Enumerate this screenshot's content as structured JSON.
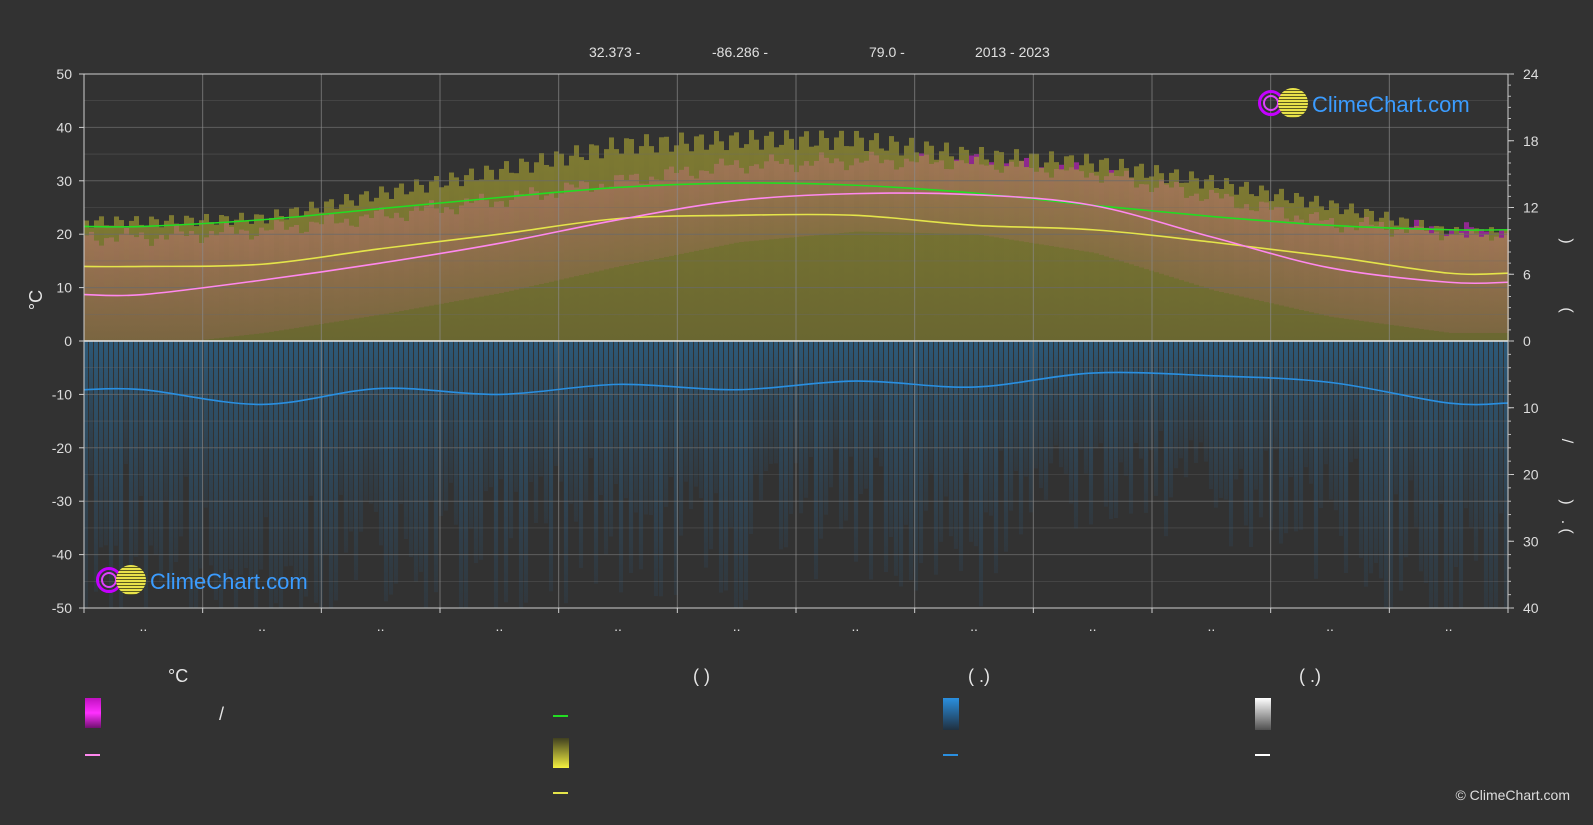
{
  "header": {
    "lat": "32.373 -",
    "lon": "-86.286 -",
    "elev": "79.0 -",
    "years": "2013 - 2023"
  },
  "logo": {
    "text": "ClimeChart.com"
  },
  "copyright": "© ClimeChart.com",
  "legend": {
    "col1_head": "°C",
    "col1_row1": "/",
    "col2_head": "(          )",
    "col3_head": "(    .)",
    "col4_head": "(    .)"
  },
  "colors": {
    "background": "#323232",
    "daylight": "#22dd22",
    "sunshine": "#e4e44a",
    "temp_mean": "#ff88ee",
    "temp_band": "#e020e0",
    "precip": "#2a8fe0",
    "precip_band": "#1e5a85",
    "grid": "#6a6a6a"
  },
  "chart_data": {
    "type": "area",
    "months": [
      "..",
      "..",
      "..",
      "..",
      "..",
      "..",
      "..",
      "..",
      "..",
      "..",
      "..",
      ".."
    ],
    "y_left": {
      "label": "°C",
      "ylim": [
        -50,
        50
      ],
      "ticks": [
        "50",
        "40",
        "30",
        "20",
        "10",
        "0",
        "-10",
        "-20",
        "-30",
        "-40",
        "-50"
      ]
    },
    "y_right_top": {
      "ylim": [
        0,
        24
      ],
      "ticks": [
        "24",
        "18",
        "12",
        "6",
        "0"
      ],
      "label_glyphs": [
        ")",
        "(",
        "/",
        ")",
        ".",
        "("
      ]
    },
    "y_right_bottom": {
      "ylim": [
        0,
        40
      ],
      "ticks": [
        "10",
        "20",
        "30",
        "40"
      ]
    },
    "series": [
      {
        "key": "daylight",
        "axis": "hours",
        "values": [
          10.3,
          10.9,
          11.9,
          12.9,
          13.8,
          14.2,
          14.0,
          13.3,
          12.2,
          11.2,
          10.4,
          10.0
        ]
      },
      {
        "key": "sunshine",
        "axis": "hours",
        "values": [
          6.7,
          6.9,
          8.3,
          9.6,
          11.0,
          11.3,
          11.3,
          10.4,
          10.0,
          8.9,
          7.6,
          6.1
        ]
      },
      {
        "key": "temp_mean",
        "axis": "celsius",
        "values": [
          8.7,
          11.4,
          14.6,
          18.3,
          22.7,
          26.3,
          27.6,
          27.4,
          25.4,
          19.5,
          13.7,
          11.0
        ]
      },
      {
        "key": "temp_max",
        "axis": "celsius",
        "values": [
          19.5,
          20.8,
          23.5,
          26.5,
          30.0,
          33.0,
          33.8,
          33.5,
          31.5,
          27.0,
          22.0,
          20.5
        ]
      },
      {
        "key": "temp_min",
        "axis": "celsius",
        "values": [
          -1.0,
          1.5,
          5.0,
          9.0,
          14.0,
          18.5,
          20.5,
          20.0,
          16.5,
          9.5,
          4.5,
          1.5
        ]
      },
      {
        "key": "precip",
        "axis": "mm",
        "values": [
          7.3,
          9.5,
          7.1,
          8.0,
          6.5,
          7.3,
          6.0,
          6.9,
          4.8,
          5.2,
          6.2,
          9.3
        ]
      }
    ]
  }
}
